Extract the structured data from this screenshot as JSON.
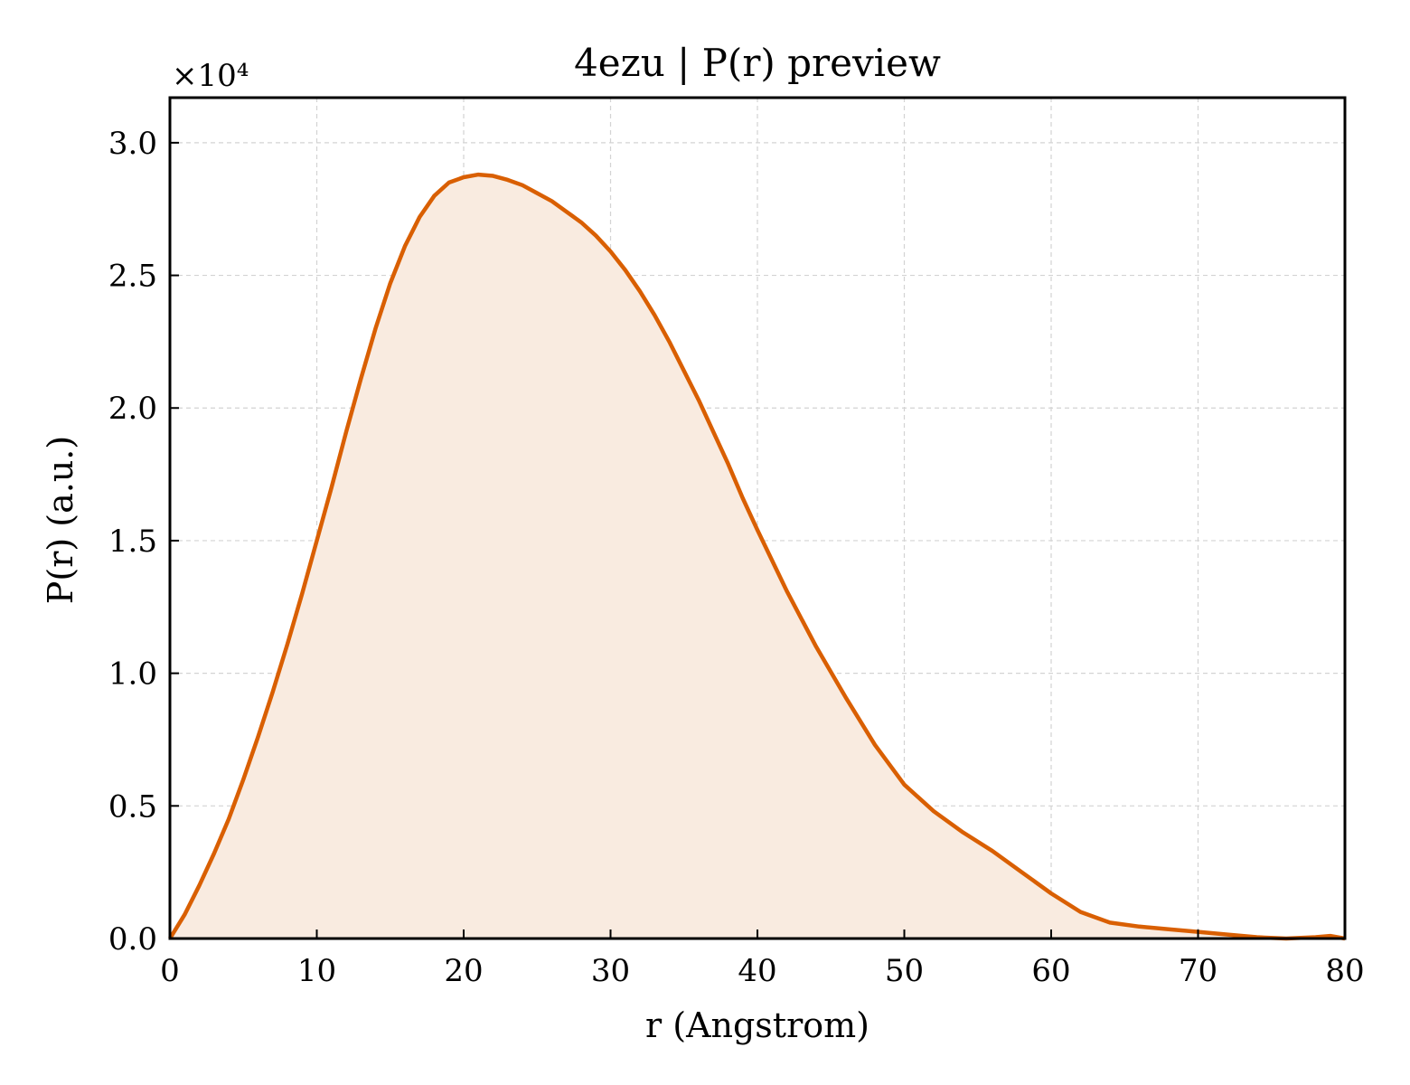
{
  "chart_data": {
    "type": "area",
    "title": "4ezu | P(r) preview",
    "xlabel": "r (Angstrom)",
    "ylabel": "P(r) (a.u.)",
    "y_multiplier_label": "×10⁴",
    "xlim": [
      0,
      80
    ],
    "ylim": [
      0,
      3.17
    ],
    "grid": true,
    "x_ticks": [
      0,
      10,
      20,
      30,
      40,
      50,
      60,
      70,
      80
    ],
    "x_tick_labels": [
      "0",
      "10",
      "20",
      "30",
      "40",
      "50",
      "60",
      "70",
      "80"
    ],
    "y_ticks": [
      0,
      0.5,
      1.0,
      1.5,
      2.0,
      2.5,
      3.0
    ],
    "y_tick_labels": [
      "0.0",
      "0.5",
      "1.0",
      "1.5",
      "2.0",
      "2.5",
      "3.0"
    ],
    "line_color": "#d95f02",
    "fill_color": "#f9ebe0",
    "series": [
      {
        "x": [
          0,
          1,
          2,
          3,
          4,
          5,
          6,
          7,
          8,
          9,
          10,
          11,
          12,
          13,
          14,
          15,
          16,
          17,
          18,
          19,
          20,
          21,
          22,
          23,
          24,
          25,
          26,
          27,
          28,
          29,
          30,
          31,
          32,
          33,
          34,
          35,
          36,
          37,
          38,
          39,
          40,
          42,
          44,
          46,
          48,
          50,
          52,
          54,
          56,
          58,
          60,
          62,
          64,
          66,
          68,
          70,
          72,
          74,
          76,
          78,
          79,
          80
        ],
        "y": [
          0,
          0.09,
          0.2,
          0.32,
          0.45,
          0.6,
          0.76,
          0.93,
          1.11,
          1.3,
          1.5,
          1.7,
          1.91,
          2.11,
          2.3,
          2.47,
          2.61,
          2.72,
          2.8,
          2.85,
          2.87,
          2.88,
          2.875,
          2.86,
          2.84,
          2.81,
          2.78,
          2.74,
          2.7,
          2.65,
          2.59,
          2.52,
          2.44,
          2.35,
          2.25,
          2.14,
          2.03,
          1.91,
          1.79,
          1.66,
          1.54,
          1.31,
          1.1,
          0.91,
          0.73,
          0.58,
          0.48,
          0.4,
          0.33,
          0.25,
          0.17,
          0.1,
          0.06,
          0.045,
          0.035,
          0.025,
          0.015,
          0.005,
          0.0,
          0.005,
          0.01,
          0.0
        ]
      }
    ]
  }
}
